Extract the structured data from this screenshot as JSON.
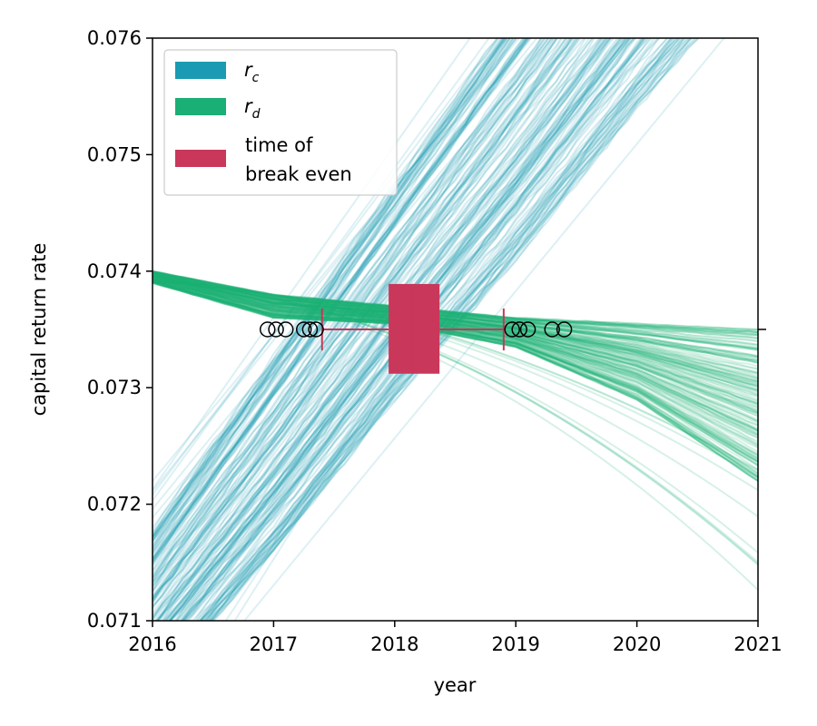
{
  "chart_data": {
    "type": "line",
    "xlabel": "year",
    "ylabel": "capital return rate",
    "xlim": [
      2016,
      2021
    ],
    "ylim": [
      0.071,
      0.076
    ],
    "x_ticks": [
      "2016",
      "2017",
      "2018",
      "2019",
      "2020",
      "2021"
    ],
    "y_ticks": [
      "0.071",
      "0.072",
      "0.073",
      "0.074",
      "0.075",
      "0.076"
    ],
    "grid": false,
    "legend_position": "top-left",
    "colors": {
      "rc": "#1a9bb3",
      "rd": "#1aaf74",
      "break_even": "#c9375a"
    },
    "legend": {
      "rc": {
        "symbol": "r",
        "subscript": "c"
      },
      "rd": {
        "symbol": "r",
        "subscript": "d"
      },
      "break_even": {
        "line1": "time of",
        "line2": "break even"
      }
    },
    "series": [
      {
        "name": "r_c",
        "style": "ensemble band of rising lines",
        "x": [
          2016,
          2017,
          2018,
          2019,
          2020,
          2021
        ],
        "low": [
          0.0704,
          0.0716,
          0.0729,
          0.0741,
          0.0754,
          0.0766
        ],
        "high": [
          0.0718,
          0.0733,
          0.0748,
          0.0763,
          0.0778,
          0.0793
        ]
      },
      {
        "name": "r_d",
        "style": "ensemble band of falling lines",
        "x": [
          2016,
          2017,
          2018,
          2019,
          2020,
          2021
        ],
        "low": [
          0.0739,
          0.0736,
          0.07355,
          0.07335,
          0.0729,
          0.0722
        ],
        "high": [
          0.074,
          0.0738,
          0.0737,
          0.0736,
          0.07355,
          0.0735
        ]
      }
    ],
    "boxplot": {
      "name": "time of break even",
      "y": 0.0735,
      "q1": 2017.95,
      "median": 2018.15,
      "q3": 2018.37,
      "whisker_low": 2017.4,
      "whisker_high": 2018.9,
      "box_ylim": [
        0.07312,
        0.07389
      ],
      "cap_half_height": 0.00018,
      "outliers": [
        2016.95,
        2017.02,
        2017.1,
        2017.25,
        2017.3,
        2017.35,
        2018.97,
        2019.03,
        2019.1,
        2019.3,
        2019.4
      ]
    },
    "right_tick_y": 0.0735
  }
}
